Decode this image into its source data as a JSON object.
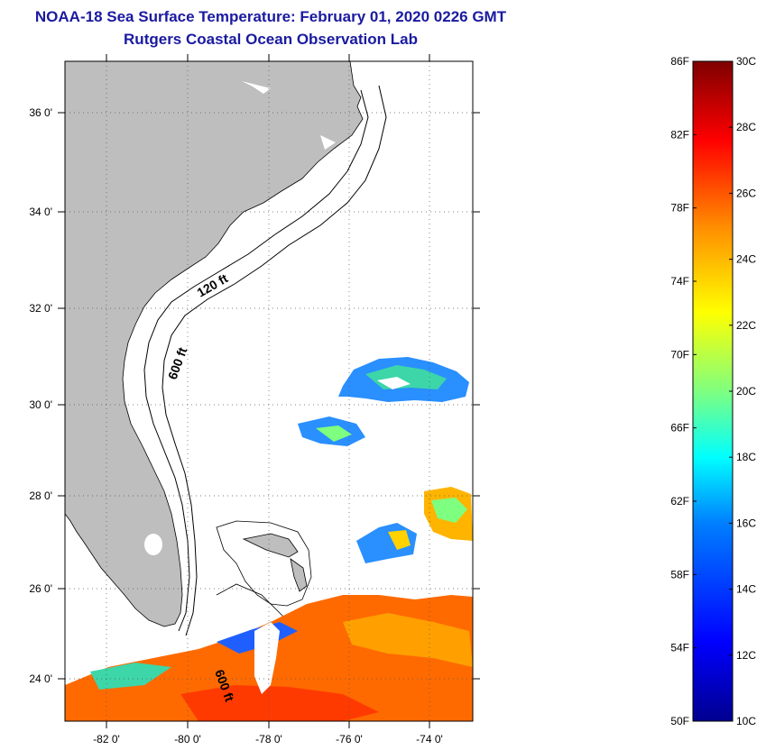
{
  "header": {
    "title": "NOAA-18 Sea Surface Temperature:  February 01, 2020 0226 GMT",
    "subtitle": "Rutgers Coastal Ocean Observation Lab"
  },
  "map": {
    "lat_range": [
      23,
      37.1
    ],
    "lon_range": [
      -83,
      -73
    ],
    "lat_ticks": [
      "24 0'",
      "26 0'",
      "28 0'",
      "30 0'",
      "32 0'",
      "34 0'",
      "36 0'"
    ],
    "lon_ticks": [
      "-82 0'",
      "-80 0'",
      "-78 0'",
      "-76 0'",
      "-74 0'"
    ],
    "land_color": "#bebebe",
    "contour_labels": [
      "120 ft",
      "600 ft",
      "600 ft"
    ]
  },
  "colorbar": {
    "fahrenheit_labels": [
      "50F",
      "54F",
      "58F",
      "62F",
      "66F",
      "70F",
      "74F",
      "78F",
      "82F",
      "86F"
    ],
    "celsius_labels": [
      "10C",
      "12C",
      "14C",
      "16C",
      "18C",
      "20C",
      "22C",
      "24C",
      "26C",
      "28C",
      "30C"
    ],
    "range_c": [
      10,
      30
    ],
    "colors": [
      "#00008f",
      "#0000ff",
      "#007fff",
      "#00ffff",
      "#7fff7f",
      "#ffff00",
      "#ff7f00",
      "#ff0000",
      "#7f0000"
    ]
  }
}
